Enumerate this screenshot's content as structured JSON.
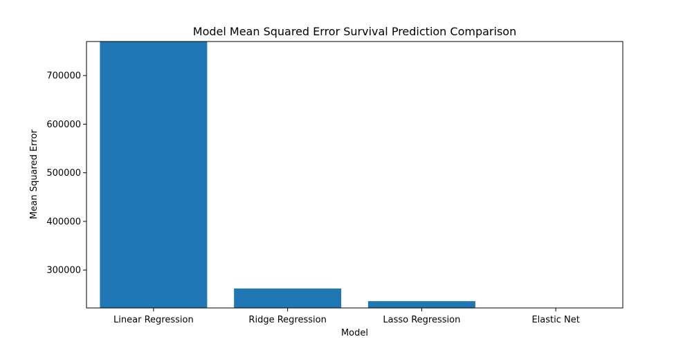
{
  "chart_data": {
    "type": "bar",
    "title": "Model Mean Squared Error Survival Prediction Comparison",
    "xlabel": "Model",
    "ylabel": "Mean Squared Error",
    "categories": [
      "Linear Regression",
      "Ridge Regression",
      "Lasso Regression",
      "Elastic Net"
    ],
    "values": [
      775000,
      262000,
      236000,
      219000
    ],
    "ylim": [
      222000,
      770000
    ],
    "yticks": [
      300000,
      400000,
      500000,
      600000,
      700000
    ],
    "ytick_labels": [
      "300000",
      "400000",
      "500000",
      "600000",
      "700000"
    ],
    "bar_color": "#1f77b4",
    "grid": false,
    "legend": "none"
  }
}
